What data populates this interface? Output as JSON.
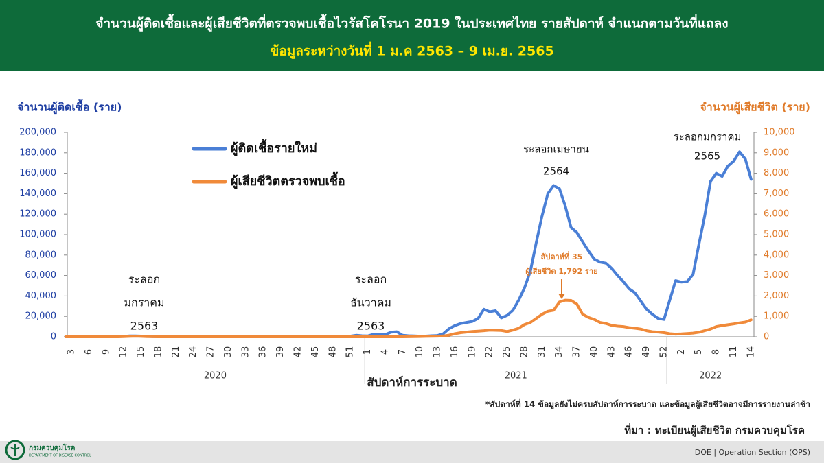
{
  "chart_data": {
    "type": "line",
    "title": "จำนวนผู้ติดเชื้อและผู้เสียชีวิตที่ตรวจพบเชื้อไวรัสโคโรนา 2019 ในประเทศไทย รายสัปดาห์ จำแนกตามวันที่แถลง",
    "subtitle": "ข้อมูลระหว่างวันที่ 1 ม.ค 2563 – 9 เม.ย. 2565",
    "y_label": "จำนวนผู้ติดเชื้อ (ราย)",
    "y2_label": "จำนวนผู้เสียชีวิต (ราย)",
    "x_label": "สัปดาห์การระบาด",
    "x_groups": [
      "2020",
      "2021",
      "2022"
    ],
    "categories": [
      null,
      "3",
      null,
      null,
      "6",
      null,
      null,
      "9",
      null,
      null,
      "12",
      null,
      null,
      "15",
      null,
      null,
      "18",
      null,
      null,
      "21",
      null,
      null,
      "24",
      null,
      null,
      "27",
      null,
      null,
      "30",
      null,
      null,
      "33",
      null,
      null,
      "36",
      null,
      null,
      "39",
      null,
      null,
      "42",
      null,
      null,
      "45",
      null,
      null,
      "48",
      null,
      null,
      "51",
      null,
      null,
      "1",
      null,
      null,
      "4",
      null,
      null,
      "7",
      null,
      null,
      "10",
      null,
      null,
      "13",
      null,
      null,
      "16",
      null,
      null,
      "19",
      null,
      null,
      "22",
      null,
      null,
      "25",
      null,
      null,
      "28",
      null,
      null,
      "31",
      null,
      null,
      "34",
      null,
      null,
      "37",
      null,
      null,
      "40",
      null,
      null,
      "43",
      null,
      null,
      "46",
      null,
      null,
      "49",
      null,
      null,
      "52",
      null,
      null,
      "2",
      null,
      null,
      "5",
      null,
      null,
      "8",
      null,
      null,
      "11",
      null,
      null,
      "14"
    ],
    "series": [
      {
        "name": "ผู้ติดเชื้อรายใหม่",
        "color": "#4a7fd6",
        "values": [
          100,
          100,
          100,
          100,
          100,
          100,
          100,
          100,
          150,
          200,
          400,
          800,
          900,
          700,
          400,
          200,
          150,
          100,
          100,
          100,
          100,
          100,
          100,
          100,
          100,
          100,
          100,
          100,
          100,
          100,
          100,
          100,
          100,
          100,
          100,
          100,
          100,
          100,
          100,
          100,
          100,
          100,
          100,
          100,
          100,
          100,
          100,
          100,
          100,
          600,
          1500,
          1000,
          800,
          2500,
          2000,
          2200,
          4500,
          5000,
          1500,
          1000,
          800,
          600,
          700,
          1000,
          1200,
          3000,
          8000,
          11000,
          13000,
          14000,
          15000,
          18000,
          27000,
          24500,
          25500,
          18500,
          21000,
          26000,
          36000,
          48000,
          64000,
          92000,
          118000,
          140000,
          148000,
          145000,
          128000,
          107000,
          102000,
          93000,
          84000,
          76000,
          73000,
          72000,
          67000,
          60000,
          54000,
          47000,
          43000,
          35000,
          27000,
          22000,
          18000,
          17000,
          36000,
          55000,
          53500,
          54000,
          61000,
          90000,
          118000,
          152000,
          160000,
          157000,
          167000,
          172000,
          181000,
          174000,
          154000
        ]
      },
      {
        "name": "ผู้เสียชีวิตตรวจพบเชื้อ",
        "color": "#f08a3a",
        "axis": "y2",
        "values": [
          0,
          0,
          0,
          0,
          0,
          0,
          0,
          0,
          0,
          0,
          10,
          20,
          30,
          20,
          10,
          5,
          0,
          0,
          0,
          0,
          0,
          0,
          0,
          0,
          0,
          0,
          0,
          0,
          0,
          0,
          0,
          0,
          0,
          0,
          0,
          0,
          0,
          0,
          0,
          0,
          0,
          0,
          0,
          0,
          0,
          0,
          0,
          0,
          0,
          0,
          0,
          0,
          0,
          0,
          0,
          0,
          0,
          0,
          0,
          5,
          10,
          15,
          20,
          25,
          30,
          40,
          80,
          150,
          200,
          230,
          260,
          280,
          300,
          330,
          320,
          310,
          260,
          330,
          420,
          600,
          700,
          900,
          1100,
          1250,
          1300,
          1700,
          1792,
          1780,
          1600,
          1100,
          950,
          850,
          700,
          650,
          560,
          520,
          500,
          450,
          420,
          380,
          300,
          250,
          230,
          200,
          150,
          130,
          140,
          160,
          180,
          220,
          300,
          380,
          500,
          550,
          590,
          630,
          680,
          720,
          830
        ]
      }
    ],
    "ylim": [
      0,
      200000
    ],
    "yticks": [
      0,
      {
        "value": 20000,
        "label": "20,000"
      },
      {
        "value": 40000,
        "label": "40,000"
      },
      {
        "value": 60000,
        "label": "60,000"
      },
      {
        "value": 80000,
        "label": "80,000"
      },
      {
        "value": 100000,
        "label": "100,000"
      },
      {
        "value": 120000,
        "label": "120,000"
      },
      {
        "value": 140000,
        "label": "140,000"
      },
      {
        "value": 160000,
        "label": "160,000"
      },
      {
        "value": 180000,
        "label": "180,000"
      },
      {
        "value": 200000,
        "label": "200,000"
      }
    ],
    "y2lim": [
      0,
      10000
    ],
    "y2ticks": [
      0,
      {
        "value": 1000,
        "label": "1,000"
      },
      {
        "value": 2000,
        "label": "2,000"
      },
      {
        "value": 3000,
        "label": "3,000"
      },
      {
        "value": 4000,
        "label": "4,000"
      },
      {
        "value": 5000,
        "label": "5,000"
      },
      {
        "value": 6000,
        "label": "6,000"
      },
      {
        "value": 7000,
        "label": "7,000"
      },
      {
        "value": 8000,
        "label": "8,000"
      },
      {
        "value": 9000,
        "label": "9,000"
      },
      {
        "value": 10000,
        "label": "10,000"
      }
    ],
    "annotations": [
      {
        "lines": [
          "ระลอก",
          "มกราคม",
          "2563"
        ]
      },
      {
        "lines": [
          "ระลอก",
          "ธันวาคม",
          "2563"
        ]
      },
      {
        "lines": [
          "ระลอกเมษายน",
          "2564"
        ]
      },
      {
        "lines": [
          "ระลอกมกราคม",
          "2565"
        ]
      },
      {
        "lines": [
          "สัปดาห์ที่ 35",
          "ผู้เสียชีวิต 1,792 ราย"
        ],
        "color": "#e07b2a"
      }
    ]
  },
  "footnote": "*สัปดาห์ที่ 14 ข้อมูลยังไม่ครบสัปดาห์การระบาด และข้อมูลผู้เสียชีวิตอาจมีการรายงานล่าช้า",
  "source": "ที่มา : ทะเบียนผู้เสียชีวิต กรมควบคุมโรค",
  "logo": {
    "name": "กรมควบคุมโรค",
    "subtitle": "DEPARTMENT OF DISEASE CONTROL"
  },
  "credit": "DOE | Operation Section (OPS)"
}
